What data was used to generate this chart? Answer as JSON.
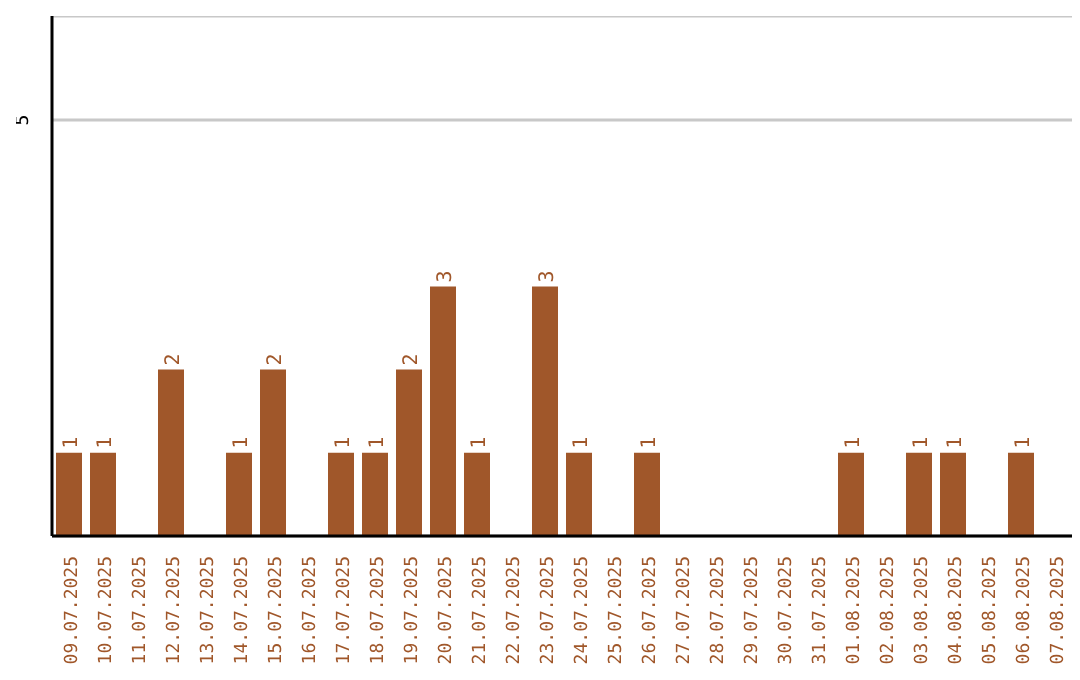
{
  "chart_data": {
    "type": "bar",
    "categories": [
      "09.07.2025",
      "10.07.2025",
      "11.07.2025",
      "12.07.2025",
      "13.07.2025",
      "14.07.2025",
      "15.07.2025",
      "16.07.2025",
      "17.07.2025",
      "18.07.2025",
      "19.07.2025",
      "20.07.2025",
      "21.07.2025",
      "22.07.2025",
      "23.07.2025",
      "24.07.2025",
      "25.07.2025",
      "26.07.2025",
      "27.07.2025",
      "28.07.2025",
      "29.07.2025",
      "30.07.2025",
      "31.07.2025",
      "01.08.2025",
      "02.08.2025",
      "03.08.2025",
      "04.08.2025",
      "05.08.2025",
      "06.08.2025",
      "07.08.2025"
    ],
    "values": [
      1,
      1,
      0,
      2,
      0,
      1,
      2,
      0,
      1,
      1,
      2,
      3,
      1,
      0,
      3,
      1,
      0,
      1,
      0,
      0,
      0,
      0,
      0,
      1,
      0,
      1,
      1,
      0,
      1,
      0
    ],
    "value_labels": [
      "1",
      "1",
      null,
      "2",
      null,
      "1",
      "2",
      null,
      "1",
      "1",
      "2",
      "3",
      "1",
      null,
      "3",
      "1",
      null,
      "1",
      null,
      null,
      null,
      null,
      null,
      "1",
      null,
      "1",
      "1",
      null,
      "1",
      null
    ],
    "color": "#a0572a",
    "ylim": [
      0,
      6.25
    ],
    "yticks": [
      5
    ],
    "grid": "y"
  }
}
